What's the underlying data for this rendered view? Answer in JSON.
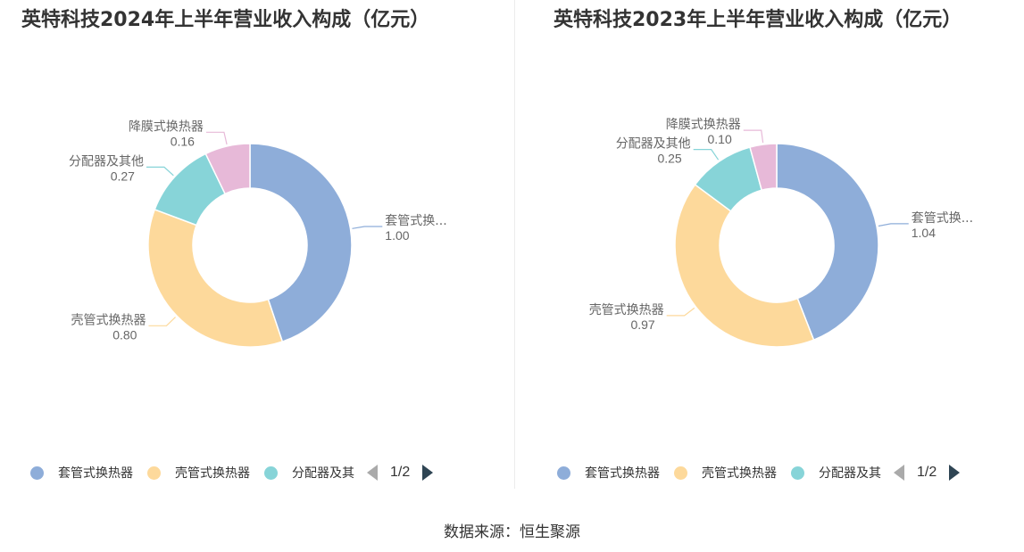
{
  "colors": {
    "blue": "#8eadd9",
    "orange": "#fdd99b",
    "teal": "#87d4d8",
    "pink": "#e7b9d8"
  },
  "chart_data": [
    {
      "type": "pie",
      "title": "英特科技2024年上半年营业收入构成（亿元）",
      "slices": [
        {
          "name": "套管式换热器",
          "label": "套管式换...",
          "value": 1.0,
          "value_text": "1.00",
          "color": "#8eadd9"
        },
        {
          "name": "壳管式换热器",
          "label": "壳管式换热器",
          "value": 0.8,
          "value_text": "0.80",
          "color": "#fdd99b"
        },
        {
          "name": "分配器及其他",
          "label": "分配器及其他",
          "value": 0.27,
          "value_text": "0.27",
          "color": "#87d4d8"
        },
        {
          "name": "降膜式换热器",
          "label": "降膜式换热器",
          "value": 0.16,
          "value_text": "0.16",
          "color": "#e7b9d8"
        }
      ],
      "legend": {
        "items": [
          "套管式换热器",
          "壳管式换热器",
          "分配器及其"
        ],
        "page": "1/2",
        "placement": "bottom"
      }
    },
    {
      "type": "pie",
      "title": "英特科技2023年上半年营业收入构成（亿元）",
      "slices": [
        {
          "name": "套管式换热器",
          "label": "套管式换...",
          "value": 1.04,
          "value_text": "1.04",
          "color": "#8eadd9"
        },
        {
          "name": "壳管式换热器",
          "label": "壳管式换热器",
          "value": 0.97,
          "value_text": "0.97",
          "color": "#fdd99b"
        },
        {
          "name": "分配器及其他",
          "label": "分配器及其他",
          "value": 0.25,
          "value_text": "0.25",
          "color": "#87d4d8"
        },
        {
          "name": "降膜式换热器",
          "label": "降膜式换热器",
          "value": 0.1,
          "value_text": "0.10",
          "color": "#e7b9d8"
        }
      ],
      "legend": {
        "items": [
          "套管式换热器",
          "壳管式换热器",
          "分配器及其"
        ],
        "page": "1/2",
        "placement": "bottom"
      }
    }
  ],
  "source": "数据来源：恒生聚源"
}
